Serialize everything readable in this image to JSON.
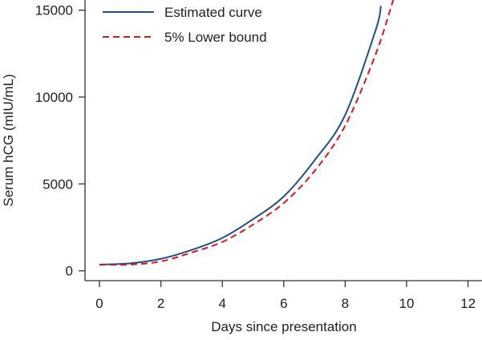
{
  "chart_data": {
    "type": "line",
    "title": "",
    "xlabel": "Days since presentation",
    "ylabel": "Serum hCG (mIU/mL)",
    "xlim": [
      0,
      12
    ],
    "ylim": [
      0,
      15580
    ],
    "xticks": [
      0,
      2,
      4,
      6,
      8,
      10,
      12
    ],
    "yticks": [
      0,
      5000,
      10000,
      15000
    ],
    "grid": false,
    "legend_position": "top-left",
    "series": [
      {
        "name": "Estimated curve",
        "style": "solid",
        "color": "#1f4e8c",
        "x": [
          0,
          1,
          2,
          3,
          4,
          5,
          6,
          7,
          8,
          9,
          9.16
        ],
        "y": [
          355,
          430,
          690,
          1200,
          1890,
          2970,
          4280,
          6350,
          8970,
          13900,
          15250
        ]
      },
      {
        "name": "5% Lower bound",
        "style": "dashed",
        "color": "#d7191c",
        "x": [
          0,
          1,
          2,
          3,
          4,
          5,
          6,
          7,
          8,
          9,
          9.6
        ],
        "y": [
          350,
          360,
          540,
          1050,
          1660,
          2660,
          3900,
          5740,
          8350,
          12500,
          15800
        ]
      }
    ]
  }
}
